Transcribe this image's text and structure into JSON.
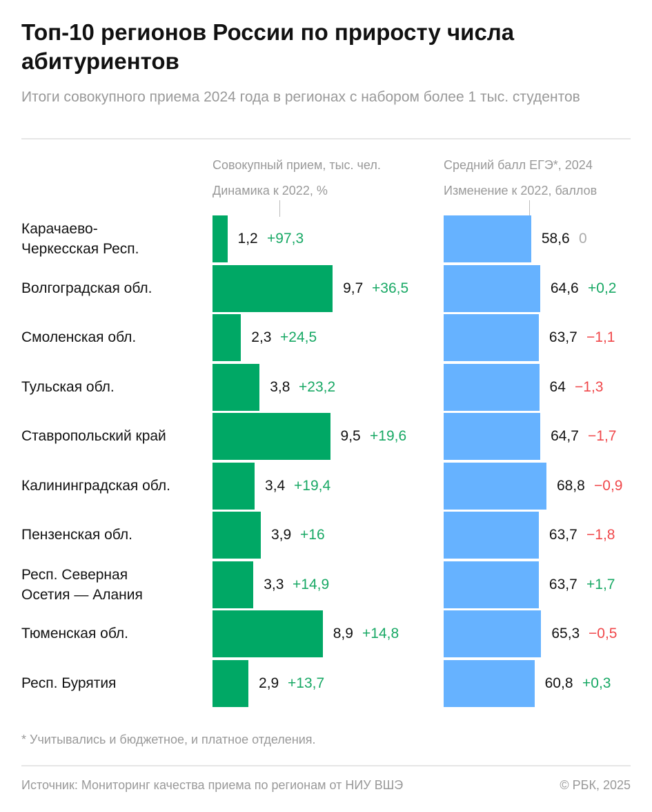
{
  "title": "Топ-10 регионов России по приросту числа абитуриентов",
  "subtitle": "Итоги совокупного приема 2024 года в регионах с набором более 1 тыс. студентов",
  "chart_data": {
    "type": "bar",
    "orientation": "horizontal",
    "categories": [
      "Карачаево-Черкесская Респ.",
      "Волгоградская обл.",
      "Смоленская обл.",
      "Тульская обл.",
      "Ставропольский край",
      "Калининградская обл.",
      "Пензенская обл.",
      "Респ. Северная Осетия — Алания",
      "Тюменская обл.",
      "Респ. Бурятия"
    ],
    "panels": [
      {
        "header": "Совокупный прием, тыс. чел.",
        "subheader": "Динамика к 2022, %",
        "values": [
          "1,2",
          "9,7",
          "2,3",
          "3,8",
          "9,5",
          "3,4",
          "3,9",
          "3,3",
          "8,9",
          "2,9"
        ],
        "changes": [
          "+97,3",
          "+36,5",
          "+24,5",
          "+23,2",
          "+19,6",
          "+19,4",
          "+16",
          "+14,9",
          "+14,8",
          "+13,7"
        ],
        "color": "#00a865"
      },
      {
        "header": "Средний балл ЕГЭ*, 2024",
        "subheader": "Изменение к 2022, баллов",
        "values": [
          "58,6",
          "64,6",
          "63,7",
          "64",
          "64,7",
          "68,8",
          "63,7",
          "63,7",
          "65,3",
          "60,8"
        ],
        "changes": [
          "0",
          "+0,2",
          "−1,1",
          "−1,3",
          "−1,7",
          "−0,9",
          "−1,8",
          "+1,7",
          "−0,5",
          "+0,3"
        ],
        "color": "#66b2ff"
      }
    ],
    "change_colors": {
      "positive": "#17a864",
      "negative": "#f0474a",
      "zero": "#aaaaaa"
    }
  },
  "footnote": "* Учитывались и бюджетное, и платное отделения.",
  "source": "Источник: Мониторинг качества приема по регионам от НИУ ВШЭ",
  "copyright": "© РБК, 2025"
}
